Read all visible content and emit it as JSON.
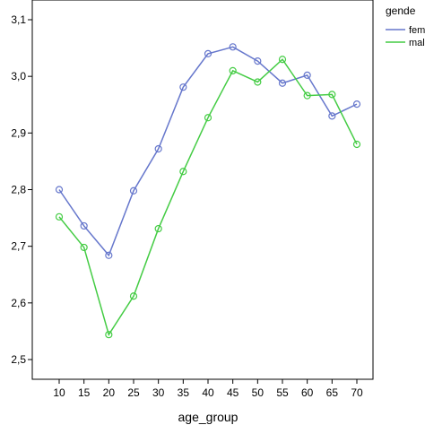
{
  "chart_data": {
    "type": "line",
    "xlabel": "age_group",
    "ylabel": "",
    "x": [
      10,
      15,
      20,
      25,
      30,
      35,
      40,
      45,
      50,
      55,
      60,
      65,
      70
    ],
    "ylim": [
      2.45,
      3.12
    ],
    "yticks": [
      "2,5",
      "2,6",
      "2,7",
      "2,8",
      "2,9",
      "3,0",
      "3,1"
    ],
    "ytick_values": [
      2.5,
      2.6,
      2.7,
      2.8,
      2.9,
      3.0,
      3.1
    ],
    "grid": false,
    "legend": {
      "title": "gende",
      "placement": "top-right",
      "labels": [
        "fem",
        "male"
      ]
    },
    "series": [
      {
        "name": "fem",
        "color": "#6677cc",
        "values": [
          2.8,
          2.736,
          2.684,
          2.798,
          2.872,
          2.981,
          3.04,
          3.052,
          3.027,
          2.988,
          3.002,
          2.93,
          2.951
        ]
      },
      {
        "name": "male",
        "color": "#44cc44",
        "values": [
          2.752,
          2.698,
          2.544,
          2.612,
          2.731,
          2.832,
          2.927,
          3.01,
          2.99,
          3.03,
          2.966,
          2.968,
          2.88
        ]
      }
    ]
  }
}
